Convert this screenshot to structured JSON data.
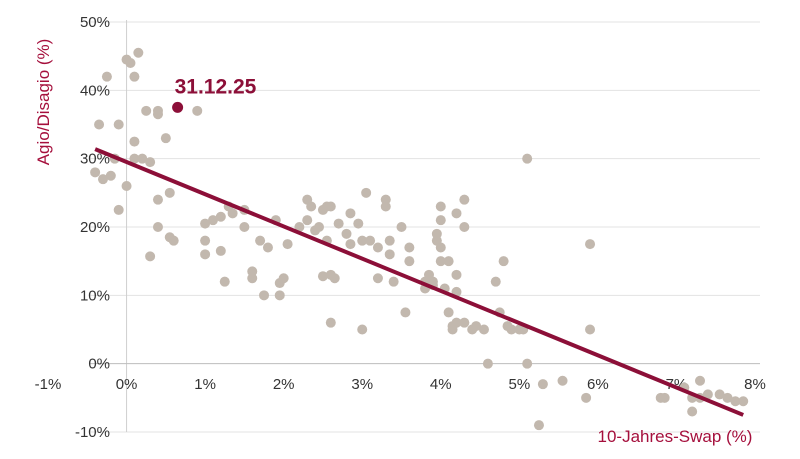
{
  "chart_data": {
    "type": "scatter",
    "title": "",
    "xlabel": "10-Jahres-Swap (%)",
    "ylabel": "Agio/Disagio (%)",
    "xlim": [
      -1,
      8
    ],
    "ylim": [
      -10,
      50
    ],
    "x_ticks": [
      -1,
      0,
      1,
      2,
      3,
      4,
      5,
      6,
      7,
      8
    ],
    "y_ticks": [
      -10,
      0,
      10,
      20,
      30,
      40,
      50
    ],
    "x_tick_labels": [
      "-1%",
      "0%",
      "1%",
      "2%",
      "3%",
      "4%",
      "5%",
      "6%",
      "7%",
      "8%"
    ],
    "y_tick_labels": [
      "-10%",
      "0%",
      "10%",
      "20%",
      "30%",
      "40%",
      "50%"
    ],
    "grid": {
      "x": false,
      "y": true
    },
    "colors": {
      "points": "#c2b8ae",
      "highlight": "#8c0f38",
      "regression": "#8c0f38",
      "axis_title": "#a50f3c",
      "grid": "#e3e3e3"
    },
    "series": [
      {
        "type": "scatter",
        "points": [
          [
            -0.4,
            28
          ],
          [
            -0.35,
            35
          ],
          [
            -0.3,
            27
          ],
          [
            -0.25,
            42
          ],
          [
            -0.2,
            27.5
          ],
          [
            -0.15,
            30
          ],
          [
            -0.1,
            22.5
          ],
          [
            -0.1,
            35
          ],
          [
            0,
            44.5
          ],
          [
            0.05,
            44
          ],
          [
            0.0,
            26
          ],
          [
            0.1,
            30
          ],
          [
            0.1,
            42
          ],
          [
            0.15,
            45.5
          ],
          [
            0.2,
            30
          ],
          [
            0.25,
            37
          ],
          [
            0.3,
            29.5
          ],
          [
            0.1,
            32.5
          ],
          [
            0.3,
            15.7
          ],
          [
            0.4,
            37
          ],
          [
            0.4,
            36.5
          ],
          [
            0.4,
            24
          ],
          [
            0.4,
            20
          ],
          [
            0.5,
            33
          ],
          [
            0.55,
            25
          ],
          [
            0.55,
            18.5
          ],
          [
            0.6,
            18
          ],
          [
            0.9,
            37
          ],
          [
            1.0,
            20.5
          ],
          [
            1.0,
            18
          ],
          [
            1.0,
            16
          ],
          [
            1.1,
            21
          ],
          [
            1.2,
            21.5
          ],
          [
            1.2,
            16.5
          ],
          [
            1.25,
            12
          ],
          [
            1.3,
            23
          ],
          [
            1.35,
            22
          ],
          [
            1.5,
            20
          ],
          [
            1.5,
            22.5
          ],
          [
            1.6,
            13.5
          ],
          [
            1.6,
            12.5
          ],
          [
            1.7,
            18
          ],
          [
            1.75,
            10
          ],
          [
            1.8,
            17
          ],
          [
            1.9,
            21
          ],
          [
            1.95,
            10
          ],
          [
            1.95,
            11.8
          ],
          [
            2.0,
            12.5
          ],
          [
            2.05,
            17.5
          ],
          [
            2.2,
            20
          ],
          [
            2.3,
            21
          ],
          [
            2.3,
            24
          ],
          [
            2.35,
            23
          ],
          [
            2.4,
            19.5
          ],
          [
            2.45,
            20
          ],
          [
            2.5,
            12.8
          ],
          [
            2.5,
            22.5
          ],
          [
            2.55,
            23
          ],
          [
            2.55,
            18
          ],
          [
            2.6,
            13
          ],
          [
            2.6,
            23
          ],
          [
            2.6,
            6
          ],
          [
            2.65,
            12.5
          ],
          [
            2.7,
            20.5
          ],
          [
            2.8,
            19
          ],
          [
            2.85,
            22
          ],
          [
            2.85,
            17.5
          ],
          [
            2.95,
            20.5
          ],
          [
            3.0,
            18
          ],
          [
            3.0,
            5
          ],
          [
            3.05,
            25
          ],
          [
            3.1,
            18
          ],
          [
            3.2,
            17
          ],
          [
            3.2,
            12.5
          ],
          [
            3.3,
            24
          ],
          [
            3.3,
            23
          ],
          [
            3.35,
            18
          ],
          [
            3.35,
            16
          ],
          [
            3.4,
            12
          ],
          [
            3.5,
            20
          ],
          [
            3.55,
            7.5
          ],
          [
            3.6,
            17
          ],
          [
            3.6,
            15
          ],
          [
            3.8,
            12
          ],
          [
            3.8,
            11
          ],
          [
            3.85,
            13
          ],
          [
            3.9,
            11.5
          ],
          [
            3.9,
            12
          ],
          [
            3.95,
            19
          ],
          [
            3.95,
            18
          ],
          [
            4.0,
            17
          ],
          [
            4.0,
            23
          ],
          [
            4.0,
            21
          ],
          [
            4.0,
            15
          ],
          [
            4.05,
            11
          ],
          [
            4.1,
            15
          ],
          [
            4.1,
            7.5
          ],
          [
            4.15,
            5.5
          ],
          [
            4.15,
            5
          ],
          [
            4.2,
            6
          ],
          [
            4.2,
            10.5
          ],
          [
            4.2,
            13
          ],
          [
            4.2,
            22
          ],
          [
            4.3,
            24
          ],
          [
            4.3,
            20
          ],
          [
            4.3,
            6
          ],
          [
            4.4,
            5
          ],
          [
            4.45,
            5.5
          ],
          [
            4.55,
            5
          ],
          [
            4.6,
            0
          ],
          [
            4.7,
            12
          ],
          [
            4.75,
            7.5
          ],
          [
            4.8,
            15
          ],
          [
            4.85,
            5.5
          ],
          [
            4.9,
            5
          ],
          [
            5.0,
            5
          ],
          [
            5.05,
            5
          ],
          [
            5.1,
            0
          ],
          [
            5.1,
            30
          ],
          [
            5.25,
            -9
          ],
          [
            5.3,
            -3
          ],
          [
            5.55,
            -2.5
          ],
          [
            5.85,
            -5
          ],
          [
            5.9,
            5
          ],
          [
            5.9,
            17.5
          ],
          [
            6.8,
            -5
          ],
          [
            6.85,
            -5
          ],
          [
            7.1,
            -3.5
          ],
          [
            7.2,
            -5
          ],
          [
            7.2,
            -7
          ],
          [
            7.3,
            -5
          ],
          [
            7.3,
            -2.5
          ],
          [
            7.4,
            -4.5
          ],
          [
            7.55,
            -4.5
          ],
          [
            7.65,
            -5
          ],
          [
            7.75,
            -5.5
          ],
          [
            7.85,
            -5.5
          ]
        ]
      },
      {
        "type": "highlight",
        "points": [
          [
            0.65,
            37.5
          ]
        ],
        "label": "31.12.25"
      },
      {
        "type": "regression",
        "points": [
          [
            -0.4,
            31.4
          ],
          [
            7.85,
            -7.5
          ]
        ]
      }
    ]
  }
}
